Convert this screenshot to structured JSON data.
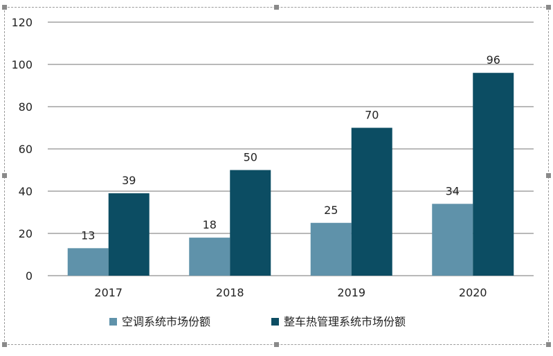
{
  "chart_data": {
    "type": "bar",
    "categories": [
      "2017",
      "2018",
      "2019",
      "2020"
    ],
    "series": [
      {
        "name": "空调系统市场份额",
        "values": [
          13,
          18,
          25,
          34
        ],
        "color": "#5f92aa"
      },
      {
        "name": "整车热管理系统市场份额",
        "values": [
          39,
          50,
          70,
          96
        ],
        "color": "#0c4d63"
      }
    ],
    "y_ticks": [
      "0",
      "20",
      "40",
      "60",
      "80",
      "100",
      "120"
    ],
    "ylim": [
      0,
      120
    ],
    "grid": true,
    "legend_position": "bottom"
  },
  "colors": {
    "gridline": "#8f8f8f",
    "axis": "#8f8f8f"
  }
}
